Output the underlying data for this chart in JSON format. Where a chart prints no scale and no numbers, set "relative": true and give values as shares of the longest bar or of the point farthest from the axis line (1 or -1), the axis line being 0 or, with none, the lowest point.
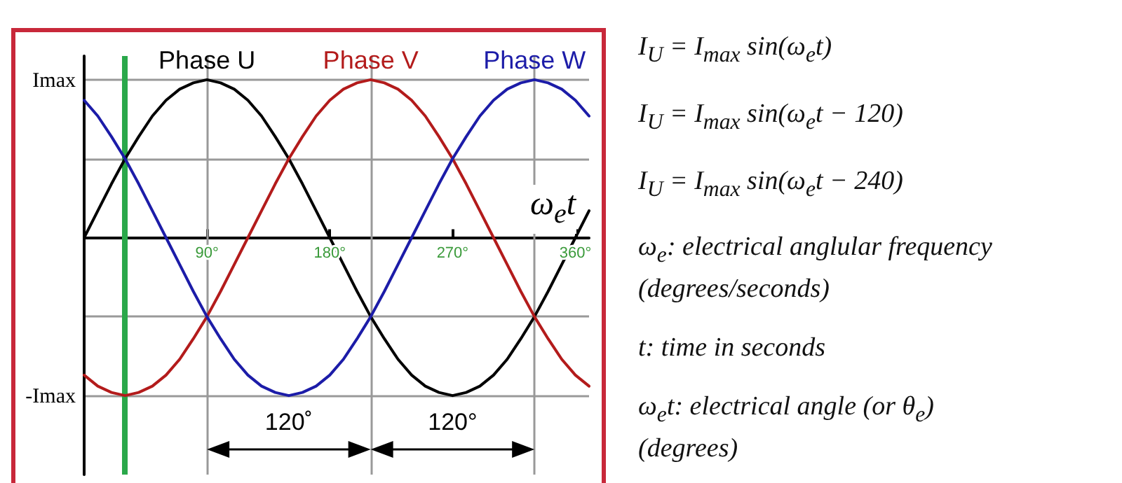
{
  "chart_data": {
    "type": "line",
    "xlabel": "ω$_{e}$t",
    "x": [
      0,
      10,
      20,
      30,
      40,
      50,
      60,
      70,
      80,
      90,
      100,
      110,
      120,
      130,
      140,
      150,
      160,
      170,
      180,
      190,
      200,
      210,
      220,
      230,
      240,
      250,
      260,
      270,
      280,
      290,
      300,
      310,
      320,
      330,
      340,
      350,
      360,
      370
    ],
    "series": [
      {
        "name": "Phase U",
        "color": "#000000",
        "values": [
          0,
          0.17,
          0.34,
          0.5,
          0.64,
          0.77,
          0.87,
          0.94,
          0.98,
          1,
          0.98,
          0.94,
          0.87,
          0.77,
          0.64,
          0.5,
          0.34,
          0.17,
          0,
          -0.17,
          -0.34,
          -0.5,
          -0.64,
          -0.77,
          -0.87,
          -0.94,
          -0.98,
          -1,
          -0.98,
          -0.94,
          -0.87,
          -0.77,
          -0.64,
          -0.5,
          -0.34,
          -0.17,
          0,
          0.17
        ]
      },
      {
        "name": "Phase V",
        "color": "#b31b1b",
        "values": [
          -0.87,
          -0.94,
          -0.98,
          -1,
          -0.98,
          -0.94,
          -0.87,
          -0.77,
          -0.64,
          -0.5,
          -0.34,
          -0.17,
          0,
          0.17,
          0.34,
          0.5,
          0.64,
          0.77,
          0.87,
          0.94,
          0.98,
          1,
          0.98,
          0.94,
          0.87,
          0.77,
          0.64,
          0.5,
          0.34,
          0.17,
          0,
          -0.17,
          -0.34,
          -0.5,
          -0.64,
          -0.77,
          -0.87,
          -0.94
        ]
      },
      {
        "name": "Phase W",
        "color": "#1c1ca8",
        "values": [
          0.87,
          0.77,
          0.64,
          0.5,
          0.34,
          0.17,
          0,
          -0.17,
          -0.34,
          -0.5,
          -0.64,
          -0.77,
          -0.87,
          -0.94,
          -0.98,
          -1,
          -0.98,
          -0.94,
          -0.87,
          -0.77,
          -0.64,
          -0.5,
          -0.34,
          -0.17,
          0,
          0.17,
          0.34,
          0.5,
          0.64,
          0.77,
          0.87,
          0.94,
          0.98,
          1,
          0.98,
          0.94,
          0.87,
          0.77
        ]
      }
    ],
    "xlim": [
      0,
      370
    ],
    "relative": true,
    "xticks": [
      {
        "value": 90,
        "label": "90°"
      },
      {
        "value": 180,
        "label": "180°"
      },
      {
        "value": 270,
        "label": "270°"
      },
      {
        "value": 360,
        "label": "360°"
      }
    ],
    "grid": "y",
    "legend": false,
    "marker": "none",
    "line_style": "solid",
    "ref_lines": [
      {
        "axis": "x",
        "value": 30,
        "color": "#2aa84a"
      },
      {
        "axis": "x",
        "value": 90,
        "color": "#999999"
      },
      {
        "axis": "x",
        "value": 210,
        "color": "#999999"
      },
      {
        "axis": "x",
        "value": 330,
        "color": "#999999"
      }
    ],
    "annotations": [
      "Imax",
      "-Imax",
      "120˚",
      "120°",
      "I$_{U}$ = I$_{max}$ sin(ω$_{e}$t)",
      "I$_{U}$ = I$_{max}$ sin(ω$_{e}$t − 120)",
      "I$_{U}$ = I$_{max}$ sin(ω$_{e}$t − 240)",
      "ω$_{e}$: electrical anglular frequency\n(degrees/seconds)",
      "t: time in seconds",
      "ω$_{e}$t: electrical angle (or θ$_{e}$)\n(degrees)"
    ]
  }
}
